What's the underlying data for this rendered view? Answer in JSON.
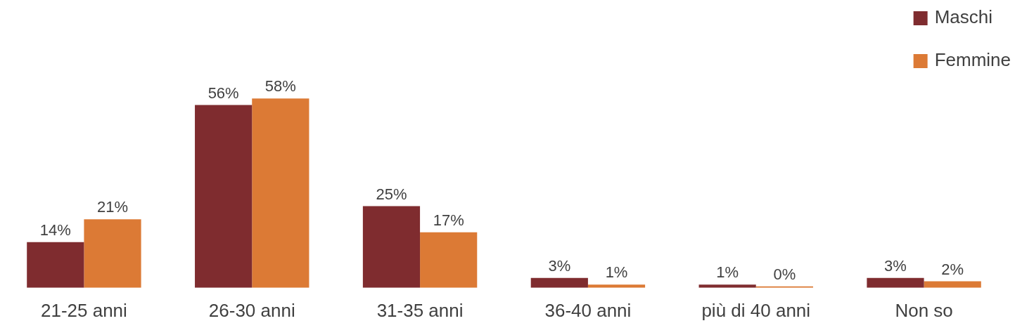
{
  "chart_data": {
    "type": "bar",
    "categories": [
      "21-25 anni",
      "26-30 anni",
      "31-35 anni",
      "36-40 anni",
      "più di 40 anni",
      "Non so"
    ],
    "series": [
      {
        "name": "Maschi",
        "color": "#7f2c2f",
        "values": [
          14,
          56,
          25,
          3,
          1,
          3
        ],
        "value_labels": [
          "14%",
          "56%",
          "25%",
          "3%",
          "1%",
          "3%"
        ]
      },
      {
        "name": "Femmine",
        "color": "#dc7a35",
        "values": [
          21,
          58,
          17,
          1,
          0,
          2
        ],
        "value_labels": [
          "21%",
          "58%",
          "17%",
          "1%",
          "0%",
          "2%"
        ]
      }
    ],
    "grid": false,
    "legend": "top right"
  }
}
